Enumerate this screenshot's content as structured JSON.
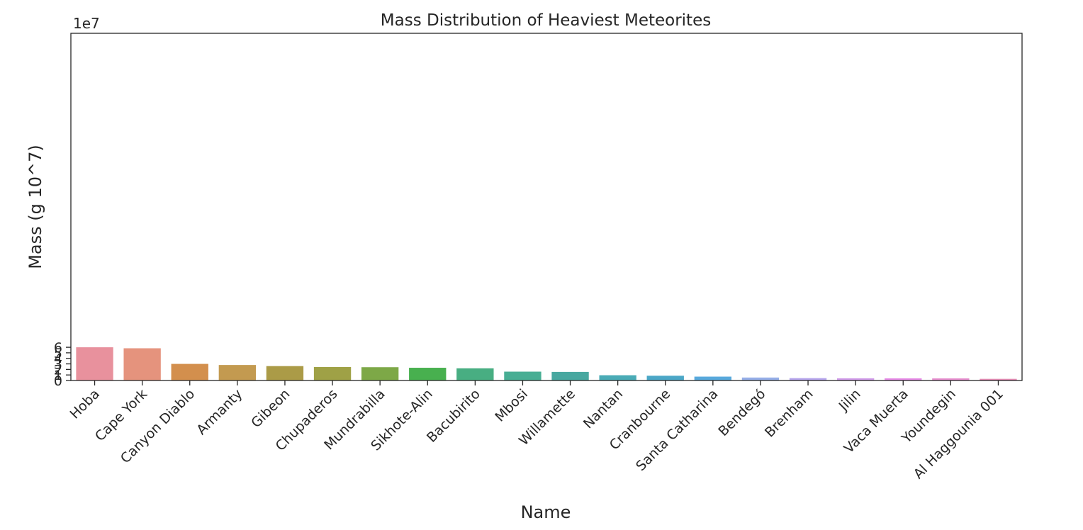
{
  "chart_data": {
    "type": "bar",
    "title": "Mass Distribution of Heaviest Meteorites",
    "xlabel": "Name",
    "ylabel": "Mass (g 10^7)",
    "y_offset_label": "1e7",
    "ylim": [
      0,
      62.7
    ],
    "yticks": [
      0,
      1,
      2,
      3,
      4,
      5,
      6
    ],
    "grid": false,
    "legend": "none",
    "categories": [
      "Hoba",
      "Cape York",
      "Canyon Diablo",
      "Armanty",
      "Gibeon",
      "Chupaderos",
      "Mundrabilla",
      "Sikhote-Alin",
      "Bacubirito",
      "Mbosi",
      "Willamette",
      "Nantan",
      "Cranbourne",
      "Santa Catharina",
      "Bendegó",
      "Brenham",
      "Jilin",
      "Vaca Muerta",
      "Youndegin",
      "Al Haggounia 001"
    ],
    "values": [
      60000000,
      58200000,
      30000000,
      28000000,
      26000000,
      24300000,
      24000000,
      23000000,
      22000000,
      16000000,
      15500000,
      9500000,
      8600000,
      7000000,
      5360000,
      4300000,
      4000000,
      3830000,
      3800000,
      3000000
    ],
    "colors": [
      "#e8919d",
      "#e5937d",
      "#d38f4d",
      "#c39a50",
      "#ab9b47",
      "#9fa146",
      "#7da847",
      "#48b04f",
      "#48ae82",
      "#48ae94",
      "#48a8a0",
      "#4aabb6",
      "#4ba7c7",
      "#58a9dc",
      "#96aee8",
      "#b6a5ec",
      "#d09be9",
      "#e68ae6",
      "#e78fcf",
      "#e68db6"
    ]
  }
}
